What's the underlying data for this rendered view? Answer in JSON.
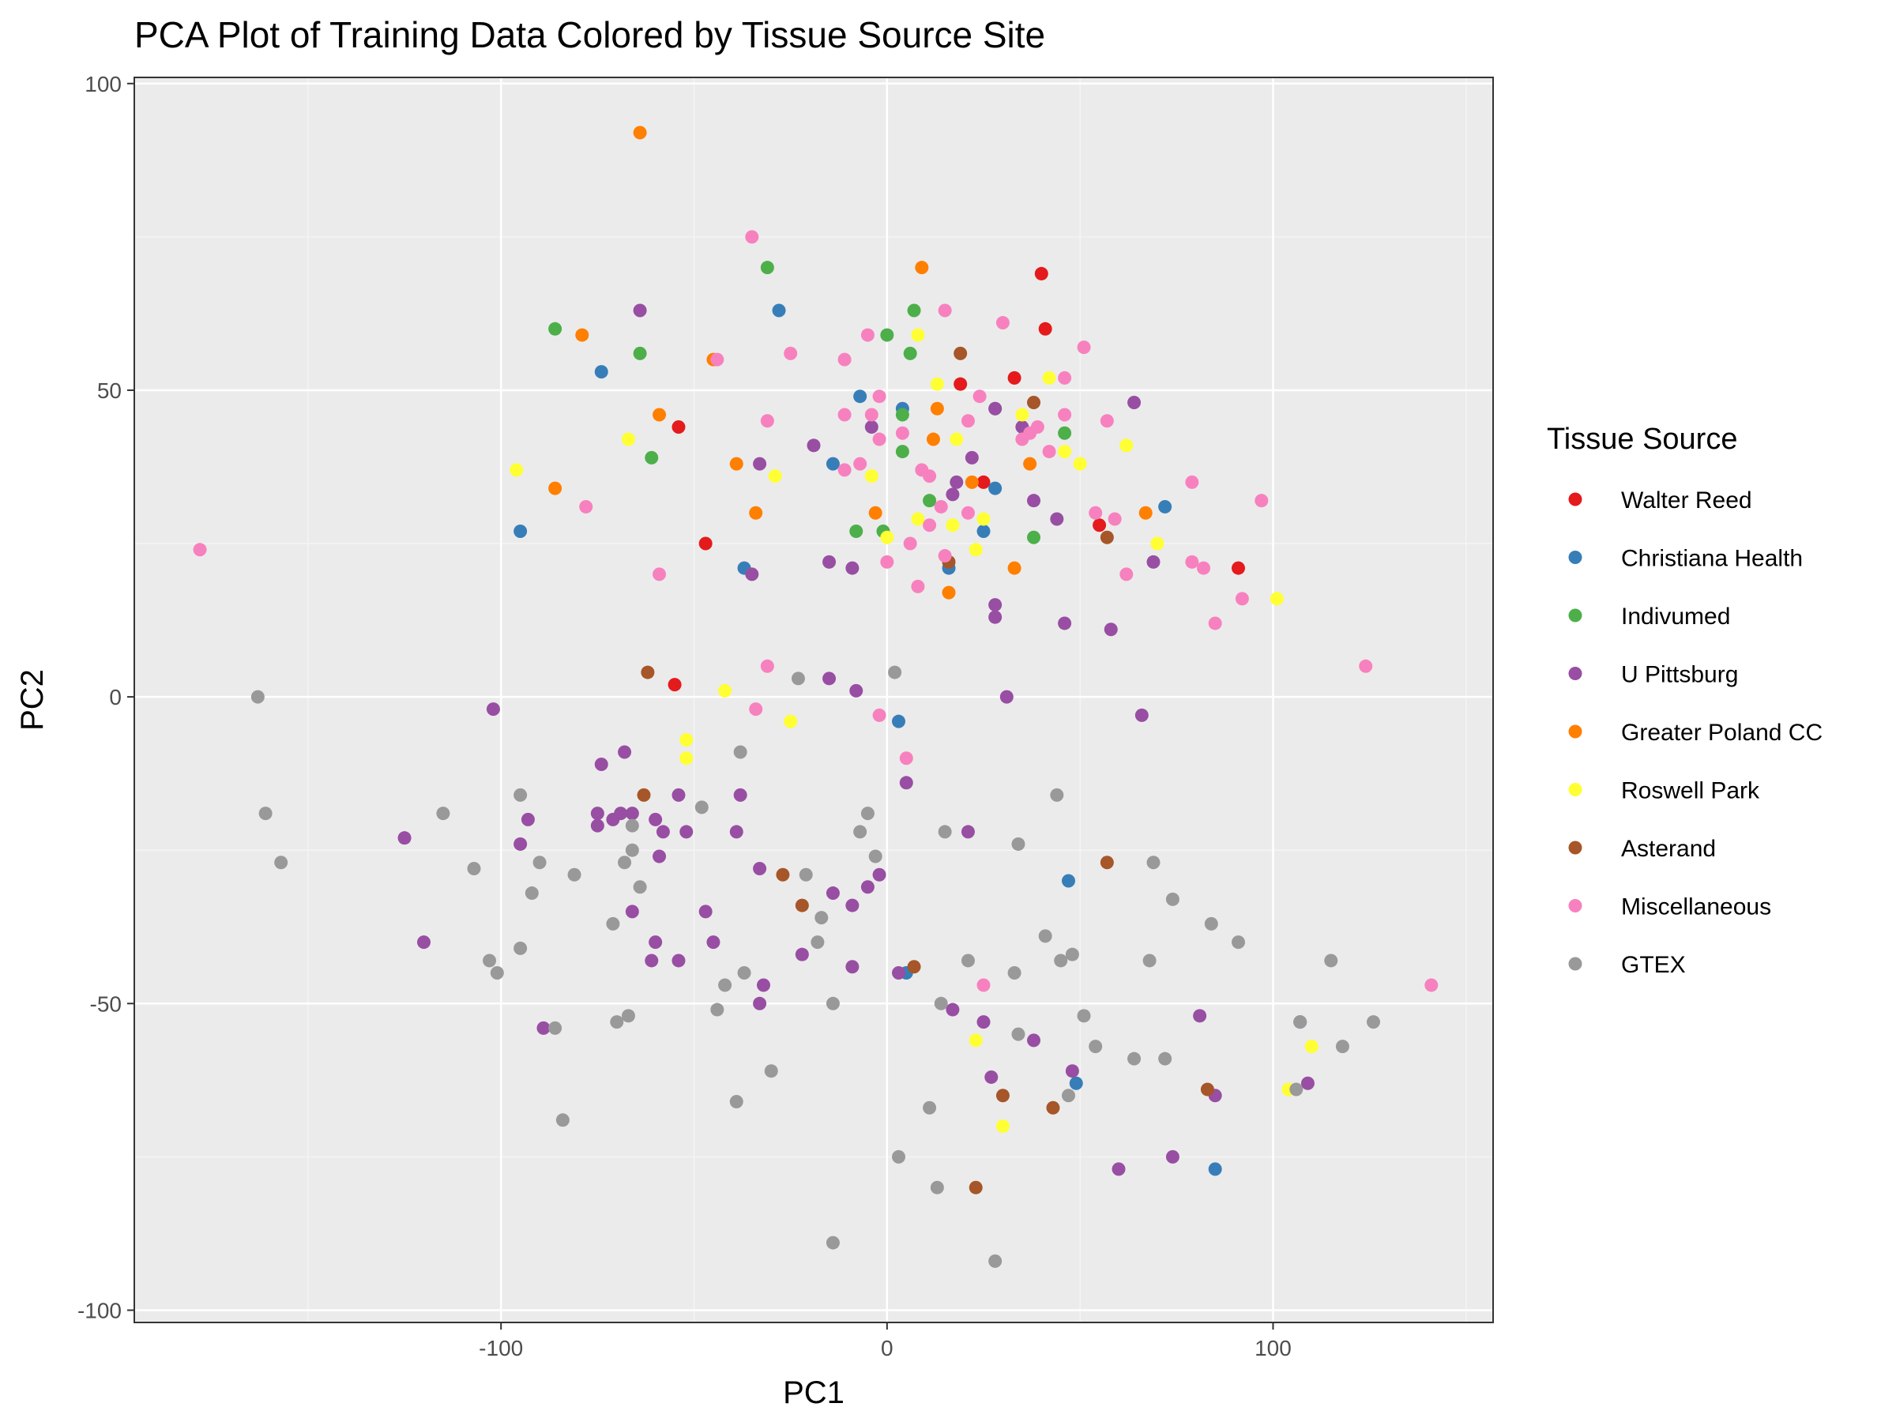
{
  "chart_data": {
    "type": "scatter",
    "title": "PCA Plot of Training Data Colored by Tissue Source Site",
    "xlabel": "PC1",
    "ylabel": "PC2",
    "xlim": [
      -195,
      157
    ],
    "ylim": [
      -102,
      101
    ],
    "xticks": [
      -100,
      0,
      100
    ],
    "yticks": [
      -100,
      -50,
      0,
      50,
      100
    ],
    "grid": true,
    "legend": {
      "title": "Tissue Source",
      "position": "right"
    },
    "series": [
      {
        "name": "Walter Reed",
        "color": "#e41a1c",
        "points": [
          [
            -54,
            44
          ],
          [
            -47,
            25
          ],
          [
            -55,
            2
          ],
          [
            19,
            51
          ],
          [
            25,
            35
          ],
          [
            33,
            52
          ],
          [
            40,
            69
          ],
          [
            41,
            60
          ],
          [
            55,
            28
          ],
          [
            91,
            21
          ]
        ]
      },
      {
        "name": "Christiana Health",
        "color": "#377eb8",
        "points": [
          [
            -74,
            53
          ],
          [
            -95,
            27
          ],
          [
            -28,
            63
          ],
          [
            -37,
            21
          ],
          [
            -14,
            38
          ],
          [
            -7,
            49
          ],
          [
            4,
            47
          ],
          [
            16,
            21
          ],
          [
            25,
            27
          ],
          [
            28,
            34
          ],
          [
            72,
            31
          ],
          [
            3,
            -4
          ],
          [
            5,
            -45
          ],
          [
            47,
            -30
          ],
          [
            49,
            -63
          ],
          [
            85,
            -77
          ]
        ]
      },
      {
        "name": "Indivumed",
        "color": "#4daf4a",
        "points": [
          [
            -86,
            60
          ],
          [
            -64,
            56
          ],
          [
            -61,
            39
          ],
          [
            -31,
            70
          ],
          [
            -1,
            27
          ],
          [
            -8,
            27
          ],
          [
            0,
            59
          ],
          [
            4,
            46
          ],
          [
            4,
            40
          ],
          [
            6,
            56
          ],
          [
            7,
            63
          ],
          [
            11,
            32
          ],
          [
            28,
            47
          ],
          [
            38,
            26
          ],
          [
            46,
            43
          ]
        ]
      },
      {
        "name": "U Pittsburg",
        "color": "#984ea3",
        "points": [
          [
            -64,
            63
          ],
          [
            -33,
            38
          ],
          [
            -35,
            20
          ],
          [
            -19,
            41
          ],
          [
            -15,
            22
          ],
          [
            -9,
            21
          ],
          [
            -4,
            44
          ],
          [
            18,
            35
          ],
          [
            17,
            33
          ],
          [
            22,
            39
          ],
          [
            28,
            47
          ],
          [
            35,
            44
          ],
          [
            38,
            32
          ],
          [
            44,
            29
          ],
          [
            46,
            12
          ],
          [
            58,
            11
          ],
          [
            64,
            48
          ],
          [
            69,
            22
          ],
          [
            28,
            15
          ],
          [
            28,
            13
          ],
          [
            31,
            0
          ],
          [
            -15,
            3
          ],
          [
            -8,
            1
          ],
          [
            66,
            -3
          ],
          [
            -102,
            -2
          ],
          [
            -74,
            -11
          ],
          [
            -68,
            -9
          ],
          [
            -125,
            -23
          ],
          [
            -95,
            -24
          ],
          [
            -93,
            -20
          ],
          [
            -75,
            -21
          ],
          [
            -75,
            -19
          ],
          [
            -71,
            -20
          ],
          [
            -69,
            -19
          ],
          [
            -66,
            -19
          ],
          [
            -60,
            -20
          ],
          [
            -59,
            -26
          ],
          [
            -58,
            -22
          ],
          [
            -52,
            -22
          ],
          [
            -54,
            -16
          ],
          [
            -38,
            -16
          ],
          [
            -39,
            -22
          ],
          [
            -33,
            -28
          ],
          [
            -66,
            -35
          ],
          [
            -60,
            -40
          ],
          [
            -61,
            -43
          ],
          [
            -54,
            -43
          ],
          [
            -47,
            -35
          ],
          [
            -45,
            -40
          ],
          [
            -32,
            -47
          ],
          [
            -33,
            -50
          ],
          [
            -22,
            -42
          ],
          [
            -14,
            -32
          ],
          [
            -9,
            -34
          ],
          [
            -5,
            -31
          ],
          [
            -2,
            -29
          ],
          [
            -9,
            -44
          ],
          [
            3,
            -45
          ],
          [
            5,
            -14
          ],
          [
            21,
            -22
          ],
          [
            17,
            -51
          ],
          [
            25,
            -53
          ],
          [
            27,
            -62
          ],
          [
            38,
            -56
          ],
          [
            48,
            -61
          ],
          [
            60,
            -77
          ],
          [
            74,
            -75
          ],
          [
            81,
            -52
          ],
          [
            85,
            -65
          ],
          [
            107,
            -53
          ],
          [
            109,
            -63
          ],
          [
            -120,
            -40
          ],
          [
            -89,
            -54
          ]
        ]
      },
      {
        "name": "Greater Poland CC",
        "color": "#ff7f00",
        "points": [
          [
            -64,
            92
          ],
          [
            -79,
            59
          ],
          [
            -86,
            34
          ],
          [
            -45,
            55
          ],
          [
            -59,
            46
          ],
          [
            -39,
            38
          ],
          [
            -34,
            30
          ],
          [
            -3,
            30
          ],
          [
            9,
            70
          ],
          [
            13,
            47
          ],
          [
            12,
            42
          ],
          [
            22,
            35
          ],
          [
            16,
            17
          ],
          [
            33,
            21
          ],
          [
            37,
            38
          ],
          [
            67,
            30
          ]
        ]
      },
      {
        "name": "Roswell Park",
        "color": "#ffff33",
        "points": [
          [
            -96,
            37
          ],
          [
            -67,
            42
          ],
          [
            -29,
            36
          ],
          [
            -4,
            36
          ],
          [
            0,
            26
          ],
          [
            8,
            29
          ],
          [
            8,
            59
          ],
          [
            13,
            51
          ],
          [
            18,
            42
          ],
          [
            17,
            28
          ],
          [
            23,
            24
          ],
          [
            25,
            29
          ],
          [
            35,
            46
          ],
          [
            42,
            52
          ],
          [
            46,
            40
          ],
          [
            50,
            38
          ],
          [
            62,
            41
          ],
          [
            70,
            25
          ],
          [
            101,
            16
          ],
          [
            -42,
            1
          ],
          [
            -52,
            -7
          ],
          [
            -52,
            -10
          ],
          [
            -25,
            -4
          ],
          [
            23,
            -56
          ],
          [
            30,
            -70
          ],
          [
            104,
            -64
          ],
          [
            110,
            -57
          ]
        ]
      },
      {
        "name": "Asterand",
        "color": "#a65628",
        "points": [
          [
            19,
            56
          ],
          [
            38,
            48
          ],
          [
            16,
            22
          ],
          [
            57,
            26
          ],
          [
            -62,
            4
          ],
          [
            -63,
            -16
          ],
          [
            -27,
            -29
          ],
          [
            -22,
            -34
          ],
          [
            7,
            -44
          ],
          [
            57,
            -27
          ],
          [
            30,
            -65
          ],
          [
            43,
            -67
          ],
          [
            23,
            -80
          ],
          [
            83,
            -64
          ]
        ]
      },
      {
        "name": "Miscellaneous",
        "color": "#f781bf",
        "points": [
          [
            -178,
            24
          ],
          [
            -35,
            75
          ],
          [
            -44,
            55
          ],
          [
            -25,
            56
          ],
          [
            -11,
            55
          ],
          [
            -5,
            59
          ],
          [
            -2,
            49
          ],
          [
            -31,
            45
          ],
          [
            -11,
            46
          ],
          [
            -4,
            46
          ],
          [
            -2,
            42
          ],
          [
            -11,
            37
          ],
          [
            -7,
            38
          ],
          [
            4,
            43
          ],
          [
            9,
            37
          ],
          [
            11,
            36
          ],
          [
            14,
            31
          ],
          [
            11,
            28
          ],
          [
            6,
            25
          ],
          [
            15,
            23
          ],
          [
            21,
            30
          ],
          [
            21,
            45
          ],
          [
            24,
            49
          ],
          [
            15,
            63
          ],
          [
            30,
            61
          ],
          [
            35,
            42
          ],
          [
            37,
            43
          ],
          [
            39,
            44
          ],
          [
            42,
            40
          ],
          [
            46,
            46
          ],
          [
            46,
            52
          ],
          [
            51,
            57
          ],
          [
            54,
            30
          ],
          [
            57,
            45
          ],
          [
            59,
            29
          ],
          [
            62,
            20
          ],
          [
            79,
            35
          ],
          [
            79,
            22
          ],
          [
            82,
            21
          ],
          [
            85,
            12
          ],
          [
            92,
            16
          ],
          [
            97,
            32
          ],
          [
            -78,
            31
          ],
          [
            -59,
            20
          ],
          [
            -31,
            5
          ],
          [
            -34,
            -2
          ],
          [
            -2,
            -3
          ],
          [
            5,
            -10
          ],
          [
            0,
            22
          ],
          [
            8,
            18
          ],
          [
            25,
            -47
          ],
          [
            124,
            5
          ],
          [
            141,
            -47
          ]
        ]
      },
      {
        "name": "GTEX",
        "color": "#999999",
        "points": [
          [
            -163,
            0
          ],
          [
            -161,
            -19
          ],
          [
            -157,
            -27
          ],
          [
            -115,
            -19
          ],
          [
            -107,
            -28
          ],
          [
            -103,
            -43
          ],
          [
            -101,
            -45
          ],
          [
            -95,
            -16
          ],
          [
            -95,
            -41
          ],
          [
            -92,
            -32
          ],
          [
            -90,
            -27
          ],
          [
            -86,
            -54
          ],
          [
            -84,
            -69
          ],
          [
            -81,
            -29
          ],
          [
            -71,
            -37
          ],
          [
            -70,
            -53
          ],
          [
            -68,
            -27
          ],
          [
            -67,
            -52
          ],
          [
            -66,
            -25
          ],
          [
            -66,
            -21
          ],
          [
            -64,
            -31
          ],
          [
            -48,
            -18
          ],
          [
            -44,
            -51
          ],
          [
            -42,
            -47
          ],
          [
            -39,
            -66
          ],
          [
            -37,
            -45
          ],
          [
            -38,
            -9
          ],
          [
            -30,
            -61
          ],
          [
            -23,
            3
          ],
          [
            -21,
            -29
          ],
          [
            -18,
            -40
          ],
          [
            -17,
            -36
          ],
          [
            -14,
            -50
          ],
          [
            -14,
            -89
          ],
          [
            -7,
            -22
          ],
          [
            -5,
            -19
          ],
          [
            -3,
            -26
          ],
          [
            2,
            4
          ],
          [
            3,
            -75
          ],
          [
            11,
            -67
          ],
          [
            13,
            -80
          ],
          [
            14,
            -50
          ],
          [
            15,
            -22
          ],
          [
            21,
            -43
          ],
          [
            28,
            -92
          ],
          [
            33,
            -45
          ],
          [
            34,
            -24
          ],
          [
            34,
            -55
          ],
          [
            41,
            -39
          ],
          [
            44,
            -16
          ],
          [
            45,
            -43
          ],
          [
            47,
            -65
          ],
          [
            48,
            -42
          ],
          [
            51,
            -52
          ],
          [
            54,
            -57
          ],
          [
            64,
            -59
          ],
          [
            68,
            -43
          ],
          [
            69,
            -27
          ],
          [
            72,
            -59
          ],
          [
            74,
            -33
          ],
          [
            84,
            -37
          ],
          [
            91,
            -40
          ],
          [
            106,
            -64
          ],
          [
            107,
            -53
          ],
          [
            115,
            -43
          ],
          [
            118,
            -57
          ],
          [
            126,
            -53
          ]
        ]
      }
    ]
  }
}
